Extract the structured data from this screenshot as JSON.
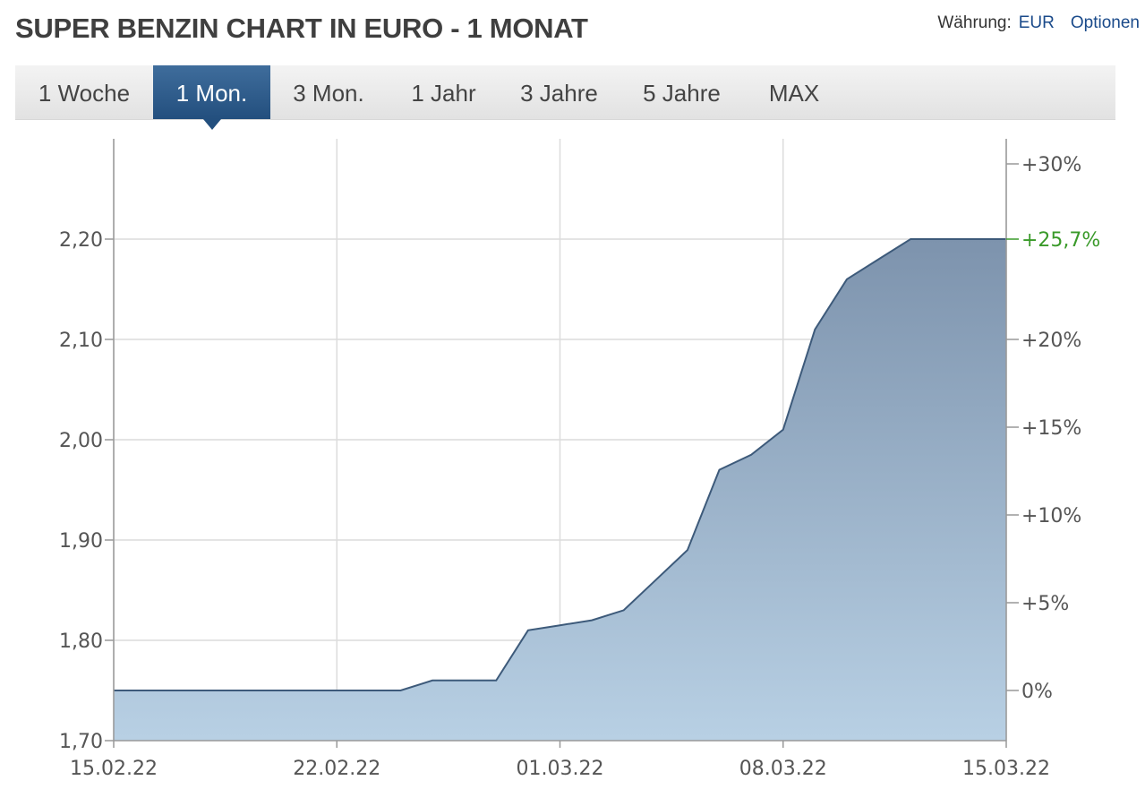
{
  "header": {
    "title": "SUPER BENZIN CHART IN EURO - 1 MONAT",
    "currency_label": "Währung:",
    "currency_value": "EUR",
    "options_label": "Optionen"
  },
  "tabs": [
    {
      "label": "1 Woche",
      "active": false
    },
    {
      "label": "1 Mon.",
      "active": true
    },
    {
      "label": "3 Mon.",
      "active": false
    },
    {
      "label": "1 Jahr",
      "active": false
    },
    {
      "label": "3 Jahre",
      "active": false
    },
    {
      "label": "5 Jahre",
      "active": false
    },
    {
      "label": "MAX",
      "active": false
    }
  ],
  "chart_data": {
    "type": "area",
    "title": "",
    "xlabel": "",
    "ylabel": "",
    "x": [
      "15.02.22",
      "16.02.22",
      "17.02.22",
      "18.02.22",
      "19.02.22",
      "20.02.22",
      "21.02.22",
      "22.02.22",
      "23.02.22",
      "24.02.22",
      "25.02.22",
      "26.02.22",
      "27.02.22",
      "28.02.22",
      "01.03.22",
      "02.03.22",
      "03.03.22",
      "04.03.22",
      "05.03.22",
      "06.03.22",
      "07.03.22",
      "08.03.22",
      "09.03.22",
      "10.03.22",
      "11.03.22",
      "12.03.22",
      "13.03.22",
      "14.03.22",
      "15.03.22"
    ],
    "series": [
      {
        "values": [
          1.75,
          1.75,
          1.75,
          1.75,
          1.75,
          1.75,
          1.75,
          1.75,
          1.75,
          1.75,
          1.76,
          1.76,
          1.76,
          1.81,
          1.815,
          1.82,
          1.83,
          1.86,
          1.89,
          1.97,
          1.985,
          2.01,
          2.11,
          2.16,
          2.18,
          2.2,
          2.2,
          2.2,
          2.2
        ]
      }
    ],
    "x_ticks": [
      "15.02.22",
      "22.02.22",
      "01.03.22",
      "08.03.22",
      "15.03.22"
    ],
    "y_ticks": [
      "1,70",
      "1,80",
      "1,90",
      "2,00",
      "2,10",
      "2,20"
    ],
    "ylim": [
      1.7,
      2.2
    ],
    "y2_ticks": [
      "0%",
      "+5%",
      "+10%",
      "+15%",
      "+20%",
      "+30%"
    ],
    "y2lim_percent": [
      0,
      30
    ],
    "last_change_label": "+25,7%",
    "grid": true,
    "colors": {
      "line": "#3d5a7a",
      "fill_top": "#7d93ad",
      "fill_bottom": "#b8d0e4",
      "change": "#3a9a2a",
      "grid": "#dcdcdc"
    }
  }
}
